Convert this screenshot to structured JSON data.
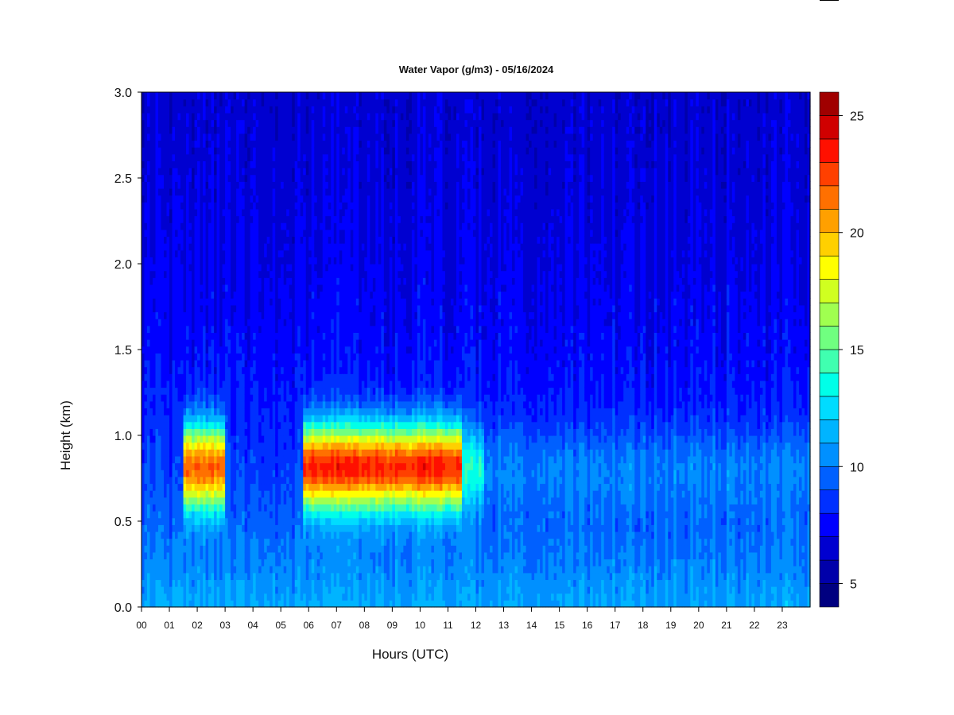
{
  "chart_data": {
    "type": "heatmap",
    "title": "Water Vapor (g/m3) - 05/16/2024",
    "xlabel": "Hours (UTC)",
    "ylabel": "Height (km)",
    "x_ticks": [
      "00",
      "01",
      "02",
      "03",
      "04",
      "05",
      "06",
      "07",
      "08",
      "09",
      "10",
      "11",
      "12",
      "13",
      "14",
      "15",
      "16",
      "17",
      "18",
      "19",
      "20",
      "21",
      "22",
      "23"
    ],
    "y_ticks": [
      "0.0",
      "0.5",
      "1.0",
      "1.5",
      "2.0",
      "2.5",
      "3.0"
    ],
    "xlim": [
      0,
      24
    ],
    "ylim": [
      0.0,
      3.0
    ],
    "colorbar": {
      "ticks": [
        "5",
        "10",
        "15",
        "20",
        "25"
      ],
      "range": [
        4,
        26
      ],
      "levels": [
        4,
        5,
        6,
        7,
        8,
        9,
        10,
        11,
        12,
        13,
        14,
        15,
        16,
        17,
        18,
        19,
        20,
        21,
        22,
        23,
        24,
        25,
        26
      ],
      "colors": [
        "#000080",
        "#0000aa",
        "#0000d0",
        "#0000ff",
        "#0030ff",
        "#0060ff",
        "#0090ff",
        "#00b4ff",
        "#00dcff",
        "#00ffe8",
        "#40ffb0",
        "#70ff80",
        "#a0ff50",
        "#d0ff20",
        "#ffff00",
        "#ffd000",
        "#ffa000",
        "#ff7000",
        "#ff4000",
        "#ff1000",
        "#d00000",
        "#a00000"
      ]
    },
    "time_features": [
      {
        "start": 0.0,
        "end": 1.5,
        "peak": 10.5
      },
      {
        "start": 1.5,
        "end": 3.0,
        "peak": 24
      },
      {
        "start": 3.0,
        "end": 5.85,
        "peak": 10.8
      },
      {
        "start": 5.85,
        "end": 11.5,
        "peak": 25.5
      },
      {
        "start": 11.5,
        "end": 12.3,
        "peak": 16
      },
      {
        "start": 12.3,
        "end": 24.0,
        "peak": 12.5
      }
    ]
  }
}
